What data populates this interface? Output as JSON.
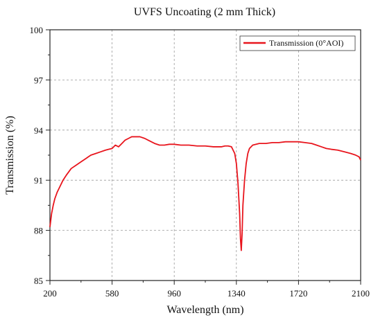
{
  "chart_data": {
    "type": "line",
    "title": "UVFS Uncoating (2 mm  Thick)",
    "xlabel": "Wavelength (nm)",
    "ylabel": "Transmission (%)",
    "xlim": [
      200,
      2100
    ],
    "ylim": [
      85,
      100
    ],
    "xticks": [
      "200",
      "580",
      "960",
      "1340",
      "1720",
      "2100"
    ],
    "yticks": [
      "85",
      "88",
      "91",
      "94",
      "97",
      "100"
    ],
    "grid": true,
    "legend_position": "top-right",
    "series": [
      {
        "name": "Transmission (0°AOI)",
        "color": "#e8141c",
        "points": [
          [
            200,
            88.2
          ],
          [
            205,
            88.6
          ],
          [
            210,
            89.0
          ],
          [
            220,
            89.5
          ],
          [
            230,
            89.9
          ],
          [
            245,
            90.3
          ],
          [
            260,
            90.6
          ],
          [
            280,
            91.0
          ],
          [
            300,
            91.3
          ],
          [
            330,
            91.7
          ],
          [
            360,
            91.9
          ],
          [
            390,
            92.1
          ],
          [
            420,
            92.3
          ],
          [
            450,
            92.5
          ],
          [
            480,
            92.6
          ],
          [
            510,
            92.7
          ],
          [
            540,
            92.8
          ],
          [
            560,
            92.85
          ],
          [
            580,
            92.9
          ],
          [
            600,
            93.1
          ],
          [
            620,
            93.0
          ],
          [
            640,
            93.2
          ],
          [
            660,
            93.4
          ],
          [
            680,
            93.5
          ],
          [
            700,
            93.6
          ],
          [
            720,
            93.6
          ],
          [
            750,
            93.6
          ],
          [
            780,
            93.5
          ],
          [
            800,
            93.4
          ],
          [
            820,
            93.3
          ],
          [
            840,
            93.2
          ],
          [
            870,
            93.1
          ],
          [
            900,
            93.1
          ],
          [
            930,
            93.15
          ],
          [
            960,
            93.15
          ],
          [
            1000,
            93.1
          ],
          [
            1050,
            93.1
          ],
          [
            1100,
            93.05
          ],
          [
            1150,
            93.05
          ],
          [
            1200,
            93.0
          ],
          [
            1250,
            93.0
          ],
          [
            1270,
            93.05
          ],
          [
            1290,
            93.05
          ],
          [
            1310,
            93.0
          ],
          [
            1320,
            92.8
          ],
          [
            1330,
            92.6
          ],
          [
            1340,
            92.0
          ],
          [
            1350,
            90.8
          ],
          [
            1360,
            89.0
          ],
          [
            1365,
            87.5
          ],
          [
            1370,
            86.8
          ],
          [
            1375,
            87.8
          ],
          [
            1380,
            89.5
          ],
          [
            1390,
            91.0
          ],
          [
            1400,
            92.0
          ],
          [
            1410,
            92.6
          ],
          [
            1420,
            92.9
          ],
          [
            1440,
            93.1
          ],
          [
            1480,
            93.2
          ],
          [
            1520,
            93.2
          ],
          [
            1560,
            93.25
          ],
          [
            1600,
            93.25
          ],
          [
            1640,
            93.3
          ],
          [
            1680,
            93.3
          ],
          [
            1720,
            93.3
          ],
          [
            1760,
            93.25
          ],
          [
            1800,
            93.2
          ],
          [
            1830,
            93.1
          ],
          [
            1860,
            93.0
          ],
          [
            1890,
            92.9
          ],
          [
            1920,
            92.85
          ],
          [
            1960,
            92.8
          ],
          [
            2000,
            92.7
          ],
          [
            2040,
            92.6
          ],
          [
            2070,
            92.5
          ],
          [
            2090,
            92.4
          ],
          [
            2100,
            92.2
          ]
        ]
      }
    ]
  }
}
